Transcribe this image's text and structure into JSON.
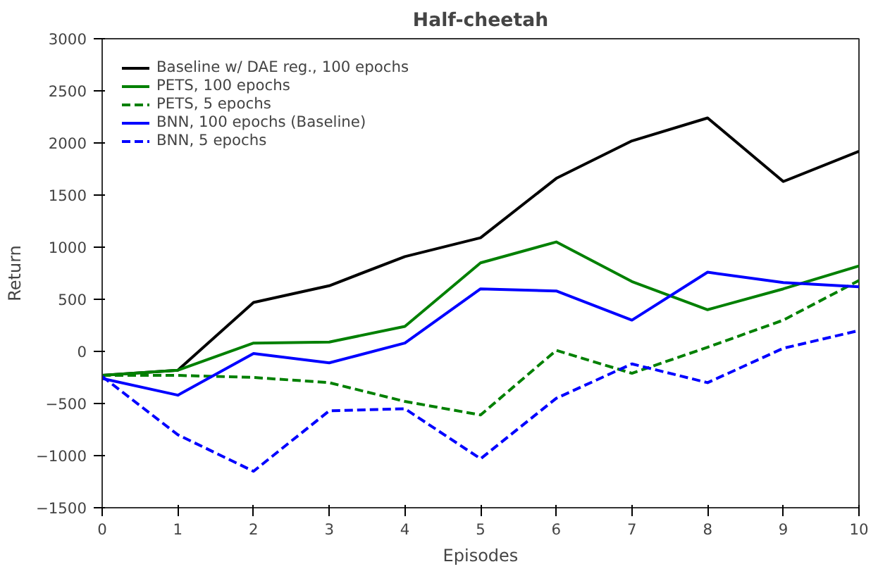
{
  "chart_data": {
    "type": "line",
    "title": "Half-cheetah",
    "xlabel": "Episodes",
    "ylabel": "Return",
    "x": [
      0,
      1,
      2,
      3,
      4,
      5,
      6,
      7,
      8,
      9,
      10
    ],
    "xlim": [
      0,
      10
    ],
    "xticks": [
      0,
      1,
      2,
      3,
      4,
      5,
      6,
      7,
      8,
      9,
      10
    ],
    "ylim": [
      -1500,
      3000
    ],
    "yticks": [
      -1500,
      -1000,
      -500,
      0,
      500,
      1000,
      1500,
      2000,
      2500,
      3000
    ],
    "grid": false,
    "legend": "top left",
    "series": [
      {
        "name": "Baseline w/ DAE reg., 100 epochs",
        "color": "#000000",
        "line_style": "solid",
        "values": [
          -230,
          -180,
          470,
          630,
          910,
          1090,
          1660,
          2020,
          2240,
          1630,
          1920
        ]
      },
      {
        "name": "PETS, 100 epochs",
        "color": "#008000",
        "line_style": "solid",
        "values": [
          -230,
          -180,
          80,
          90,
          240,
          850,
          1050,
          670,
          400,
          600,
          820
        ]
      },
      {
        "name": "PETS, 5 epochs",
        "color": "#008000",
        "line_style": "dashed",
        "values": [
          -230,
          -230,
          -250,
          -300,
          -480,
          -610,
          10,
          -210,
          40,
          300,
          680
        ]
      },
      {
        "name": "BNN, 100 epochs (Baseline)",
        "color": "#0000ff",
        "line_style": "solid",
        "values": [
          -260,
          -420,
          -20,
          -110,
          80,
          600,
          580,
          300,
          760,
          660,
          620
        ]
      },
      {
        "name": "BNN, 5 epochs",
        "color": "#0000ff",
        "line_style": "dashed",
        "values": [
          -240,
          -800,
          -1150,
          -570,
          -550,
          -1030,
          -450,
          -120,
          -300,
          30,
          200
        ]
      }
    ]
  }
}
